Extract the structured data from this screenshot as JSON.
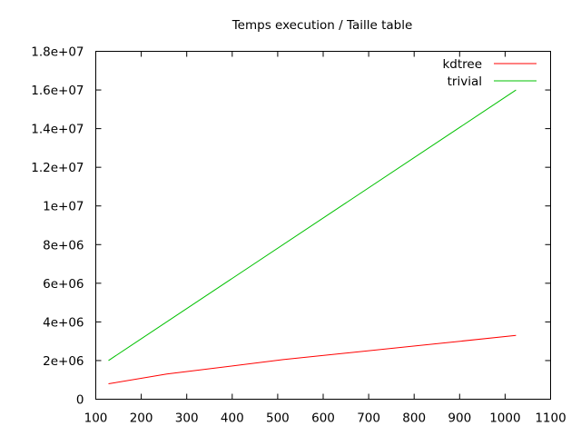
{
  "chart_data": {
    "type": "line",
    "title": "Temps execution / Taille table",
    "xlabel": "",
    "ylabel": "",
    "xlim": [
      100,
      1100
    ],
    "ylim": [
      0,
      18000000
    ],
    "x_ticks": [
      100,
      200,
      300,
      400,
      500,
      600,
      700,
      800,
      900,
      1000,
      1100
    ],
    "x_tick_labels": [
      "100",
      "200",
      "300",
      "400",
      "500",
      "600",
      "700",
      "800",
      "900",
      "1000",
      "1100"
    ],
    "y_ticks": [
      0,
      2000000,
      4000000,
      6000000,
      8000000,
      10000000,
      12000000,
      14000000,
      16000000,
      18000000
    ],
    "y_tick_labels": [
      "0",
      "2e+06",
      "4e+06",
      "6e+06",
      "8e+06",
      "1e+07",
      "1.2e+07",
      "1.4e+07",
      "1.6e+07",
      "1.8e+07"
    ],
    "grid": false,
    "legend_position": "top-right",
    "series": [
      {
        "name": "kdtree",
        "color": "#ff0000",
        "x": [
          128,
          256,
          512,
          1024
        ],
        "y": [
          800000,
          1300000,
          2050000,
          3300000
        ]
      },
      {
        "name": "trivial",
        "color": "#00c000",
        "x": [
          128,
          1024
        ],
        "y": [
          2000000,
          16000000
        ]
      }
    ]
  }
}
